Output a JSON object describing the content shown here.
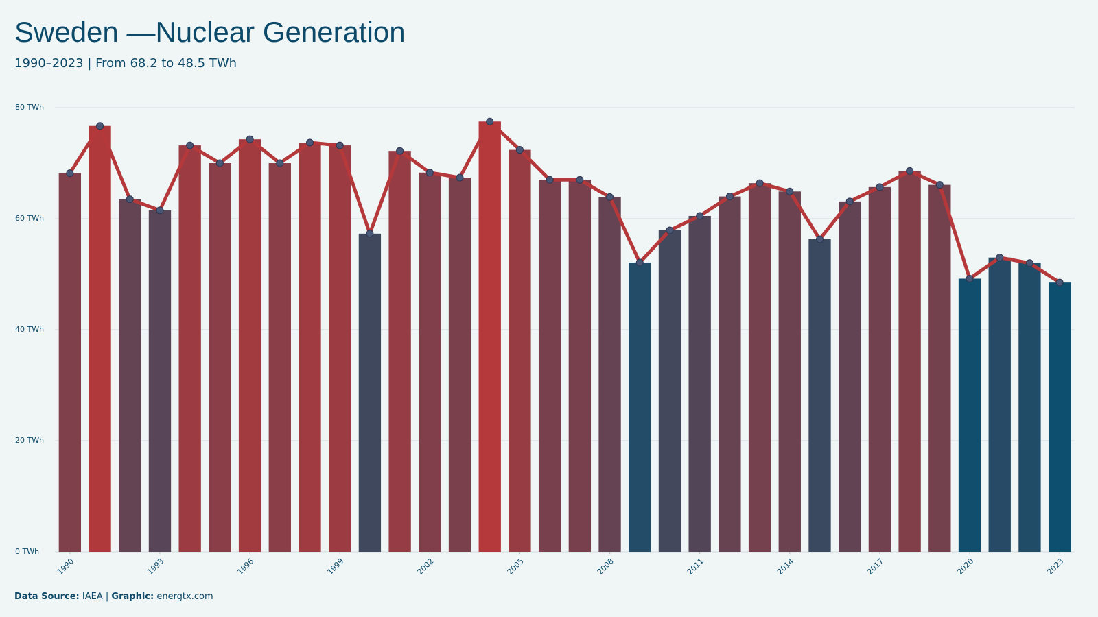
{
  "chart_data": {
    "type": "bar-line",
    "title": "Sweden —Nuclear Generation",
    "subtitle": "1990–2023 | From 68.2 to 48.5 TWh",
    "x": [
      1990,
      1991,
      1992,
      1993,
      1994,
      1995,
      1996,
      1997,
      1998,
      1999,
      2000,
      2001,
      2002,
      2003,
      2004,
      2005,
      2006,
      2007,
      2008,
      2009,
      2010,
      2011,
      2012,
      2013,
      2014,
      2015,
      2016,
      2017,
      2018,
      2019,
      2020,
      2021,
      2022,
      2023
    ],
    "values": [
      68.2,
      76.7,
      63.5,
      61.5,
      73.2,
      70.0,
      74.3,
      70.0,
      73.7,
      73.2,
      57.3,
      72.2,
      68.3,
      67.4,
      77.5,
      72.4,
      67.0,
      67.0,
      63.9,
      52.1,
      57.9,
      60.5,
      64.0,
      66.4,
      64.9,
      56.3,
      63.1,
      65.7,
      68.6,
      66.1,
      49.2,
      53.0,
      52.0,
      48.5
    ],
    "xlim": [
      1989.5,
      2023.5
    ],
    "xticks": [
      1990,
      1993,
      1996,
      1999,
      2002,
      2005,
      2008,
      2011,
      2014,
      2017,
      2020,
      2023
    ],
    "ylim": [
      0,
      80
    ],
    "yticks": [
      {
        "value": 0,
        "label": "0 TWh"
      },
      {
        "value": 20,
        "label": "20 TWh"
      },
      {
        "value": 40,
        "label": "40 TWh"
      },
      {
        "value": 60,
        "label": "60 TWh"
      },
      {
        "value": 80,
        "label": "80 TWh"
      }
    ],
    "grid": true,
    "colorscale": [
      "#0d4f6e",
      "#b5383a"
    ],
    "line_color": "#b5383a",
    "marker_color": "#4a5878",
    "footer": {
      "source_label": "Data Source:",
      "source": "IAEA |",
      "credit_label": "Graphic:",
      "credit": "energtx.com"
    }
  }
}
